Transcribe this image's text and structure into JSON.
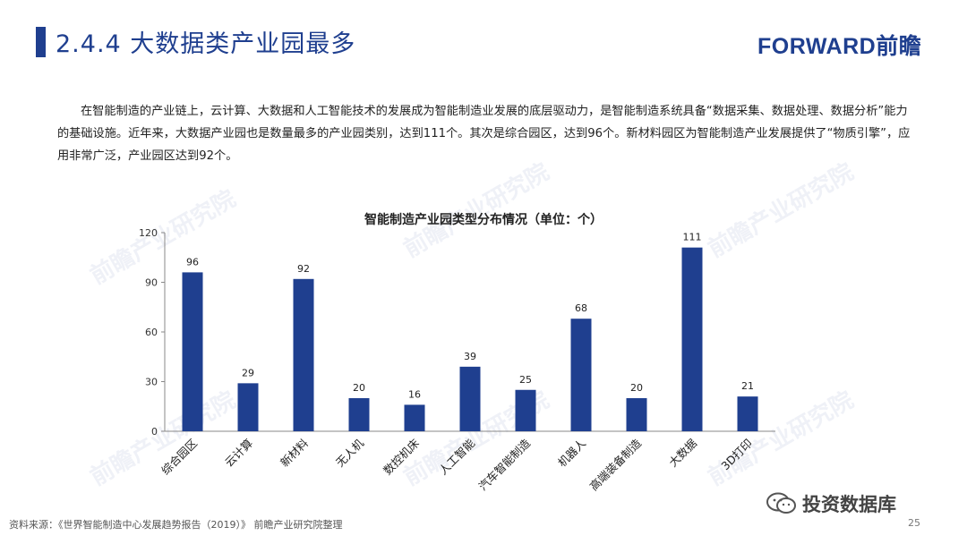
{
  "header": {
    "title": "2.4.4 大数据类产业园最多",
    "logo": "FORWARD前瞻"
  },
  "intro": "在智能制造的产业链上，云计算、大数据和人工智能技术的发展成为智能制造业发展的底层驱动力，是智能制造系统具备“数据采集、数据处理、数据分析”能力的基础设施。近年来，大数据产业园也是数量最多的产业园类别，达到111个。其次是综合园区，达到96个。新材料园区为智能制造产业发展提供了“物质引擎”，应用非常广泛，产业园区达到92个。",
  "watermark": "前瞻产业研究院",
  "chart_data": {
    "type": "bar",
    "title": "智能制造产业园类型分布情况（单位：个）",
    "categories": [
      "综合园区",
      "云计算",
      "新材料",
      "无人机",
      "数控机床",
      "人工智能",
      "汽车智能制造",
      "机器人",
      "高端装备制造",
      "大数据",
      "3D打印"
    ],
    "values": [
      96,
      29,
      92,
      20,
      16,
      39,
      25,
      68,
      20,
      111,
      21
    ],
    "ylim": [
      0,
      120
    ],
    "yticks": [
      0,
      30,
      60,
      90,
      120
    ],
    "xlabel": "",
    "ylabel": "",
    "bar_color": "#1f3f8f",
    "grid": false,
    "legend": "none"
  },
  "footer": {
    "source": "资料来源：《世界智能制造中心发展趋势报告（2019）》 前瞻产业研究院整理",
    "page": "25",
    "brand": "投资数据库"
  },
  "icons": {
    "wechat": "wechat-icon"
  }
}
